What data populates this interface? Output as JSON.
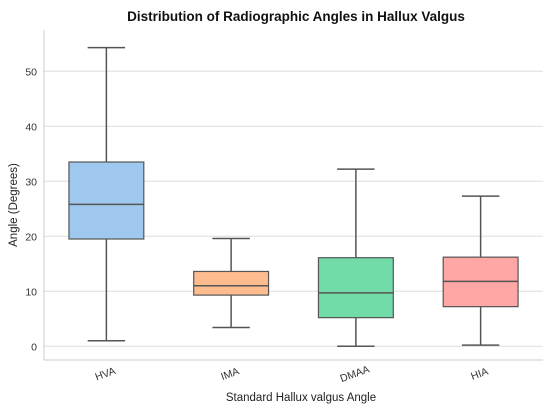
{
  "chart_data": {
    "type": "box",
    "title": "Distribution of Radiographic Angles in Hallux Valgus",
    "xlabel": "Standard Hallux valgus Angle",
    "ylabel": "Angle (Degrees)",
    "ylim": [
      -2.5,
      57.5
    ],
    "yticks": [
      0,
      10,
      20,
      30,
      40,
      50
    ],
    "grid": true,
    "categories": [
      "HVA",
      "IMA",
      "DMAA",
      "HIA"
    ],
    "boxes": [
      {
        "category": "HVA",
        "min": 1.0,
        "q1": 19.5,
        "median": 25.8,
        "q3": 33.5,
        "max": 54.3,
        "color": "#9fc8ee"
      },
      {
        "category": "IMA",
        "min": 3.4,
        "q1": 9.3,
        "median": 11.0,
        "q3": 13.6,
        "max": 19.6,
        "color": "#ffbc8f"
      },
      {
        "category": "DMAA",
        "min": 0.0,
        "q1": 5.2,
        "median": 9.7,
        "q3": 16.1,
        "max": 32.2,
        "color": "#72dca8"
      },
      {
        "category": "HIA",
        "min": 0.2,
        "q1": 7.2,
        "median": 11.8,
        "q3": 16.2,
        "max": 27.3,
        "color": "#ffa7a4"
      }
    ]
  }
}
